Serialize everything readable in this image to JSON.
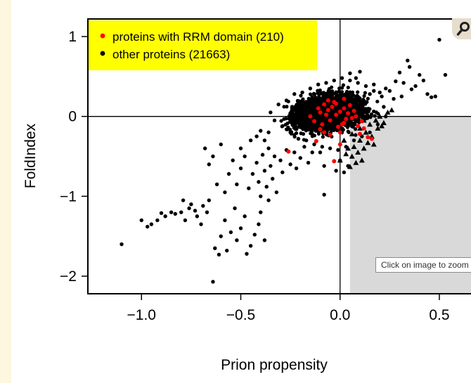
{
  "chart_data": {
    "type": "scatter",
    "xlabel": "Prion propensity",
    "ylabel": "FoldIndex",
    "xlim": [
      -1.27,
      0.67
    ],
    "ylim": [
      -2.22,
      1.22
    ],
    "xticks": [
      -1.0,
      -0.5,
      0.0,
      0.5
    ],
    "xtick_labels": [
      "−1.0",
      "−0.5",
      "0.0",
      "0.5"
    ],
    "yticks": [
      -2,
      -1,
      0,
      1
    ],
    "ytick_labels": [
      "−2",
      "−1",
      "0",
      "1"
    ],
    "reference_lines": {
      "x": 0,
      "y": 0
    },
    "shaded_region": {
      "x_from": 0.05,
      "x_to": 0.67,
      "y_from": -2.22,
      "y_to": 0,
      "color": "#d9d9d9"
    },
    "grid": false,
    "legend_position": "top-left",
    "legend_background": "#ffff00",
    "series": [
      {
        "name": "proteins with RRM domain (210)",
        "color": "#ff0000",
        "marker": "circle",
        "points": [
          [
            -0.26,
            -0.44
          ],
          [
            -0.12,
            -0.31
          ],
          [
            -0.05,
            -0.23
          ],
          [
            0.0,
            -0.35
          ],
          [
            -0.03,
            -0.56
          ],
          [
            0.02,
            -0.08
          ],
          [
            0.1,
            -0.22
          ],
          [
            0.14,
            -0.26
          ],
          [
            -0.08,
            0.15
          ],
          [
            -0.1,
            0.05
          ],
          [
            -0.06,
            0.08
          ],
          [
            -0.04,
            0.12
          ],
          [
            -0.02,
            0.02
          ],
          [
            0.0,
            0.06
          ],
          [
            0.02,
            0.1
          ],
          [
            0.04,
            0.04
          ],
          [
            0.06,
            -0.02
          ],
          [
            0.08,
            0.0
          ],
          [
            -0.15,
            0.0
          ],
          [
            -0.13,
            -0.06
          ],
          [
            -0.11,
            0.1
          ],
          [
            -0.09,
            -0.1
          ],
          [
            -0.07,
            0.02
          ],
          [
            -0.05,
            -0.05
          ],
          [
            -0.03,
            0.18
          ],
          [
            -0.01,
            -0.13
          ],
          [
            0.01,
            -0.1
          ],
          [
            0.03,
            -0.03
          ],
          [
            0.05,
            0.14
          ],
          [
            0.07,
            0.07
          ],
          [
            0.09,
            -0.12
          ],
          [
            0.11,
            -0.06
          ],
          [
            -0.06,
            0.2
          ],
          [
            -0.02,
            0.16
          ],
          [
            0.02,
            0.22
          ],
          [
            -0.1,
            -0.16
          ],
          [
            -0.08,
            -0.2
          ],
          [
            0.0,
            -0.2
          ],
          [
            0.12,
            -0.15
          ],
          [
            0.16,
            -0.28
          ]
        ]
      },
      {
        "name": "other proteins (21663)",
        "color": "#000000",
        "marker": "circle",
        "points": [
          [
            -1.1,
            -1.6
          ],
          [
            -1.0,
            -1.3
          ],
          [
            -0.97,
            -1.38
          ],
          [
            -0.95,
            -1.35
          ],
          [
            -0.92,
            -1.3
          ],
          [
            -0.9,
            -1.21
          ],
          [
            -0.88,
            -1.25
          ],
          [
            -0.85,
            -1.2
          ],
          [
            -0.83,
            -1.22
          ],
          [
            -0.8,
            -1.2
          ],
          [
            -0.79,
            -1.05
          ],
          [
            -0.78,
            -1.3
          ],
          [
            -0.76,
            -1.15
          ],
          [
            -0.75,
            -1.1
          ],
          [
            -0.73,
            -1.18
          ],
          [
            -0.72,
            -1.25
          ],
          [
            -0.7,
            -1.35
          ],
          [
            -0.69,
            -1.12
          ],
          [
            -0.67,
            -1.2
          ],
          [
            -0.66,
            -1.05
          ],
          [
            -0.64,
            -2.07
          ],
          [
            -0.63,
            -1.65
          ],
          [
            -0.61,
            -1.73
          ],
          [
            -0.6,
            -1.5
          ],
          [
            -0.58,
            -1.3
          ],
          [
            -0.57,
            -1.68
          ],
          [
            -0.55,
            -1.45
          ],
          [
            -0.53,
            -1.15
          ],
          [
            -0.52,
            -1.55
          ],
          [
            -0.5,
            -1.4
          ],
          [
            -0.48,
            -1.25
          ],
          [
            -0.47,
            -1.72
          ],
          [
            -0.45,
            -1.62
          ],
          [
            -0.43,
            -1.48
          ],
          [
            -0.41,
            -1.35
          ],
          [
            -0.4,
            -1.2
          ],
          [
            -0.38,
            -1.55
          ],
          [
            -0.36,
            -1.05
          ],
          [
            -0.68,
            -0.4
          ],
          [
            -0.66,
            -0.6
          ],
          [
            -0.64,
            -0.5
          ],
          [
            -0.62,
            -0.85
          ],
          [
            -0.6,
            -0.35
          ],
          [
            -0.58,
            -0.95
          ],
          [
            -0.56,
            -0.72
          ],
          [
            -0.54,
            -0.55
          ],
          [
            -0.52,
            -0.85
          ],
          [
            -0.5,
            -0.65
          ],
          [
            -0.5,
            -0.4
          ],
          [
            -0.48,
            -0.5
          ],
          [
            -0.46,
            -0.9
          ],
          [
            -0.45,
            -0.3
          ],
          [
            -0.44,
            -0.72
          ],
          [
            -0.42,
            -0.58
          ],
          [
            -0.41,
            -0.82
          ],
          [
            -0.4,
            -1.0
          ],
          [
            -0.39,
            -0.48
          ],
          [
            -0.38,
            -0.68
          ],
          [
            -0.37,
            -0.88
          ],
          [
            -0.36,
            -0.4
          ],
          [
            -0.35,
            -0.62
          ],
          [
            -0.34,
            -0.78
          ],
          [
            -0.33,
            -0.5
          ],
          [
            -0.32,
            -0.95
          ],
          [
            -0.3,
            -0.55
          ],
          [
            -0.29,
            -0.7
          ],
          [
            -0.27,
            -0.42
          ],
          [
            -0.25,
            -0.6
          ],
          [
            -0.23,
            -0.45
          ],
          [
            -0.22,
            -0.65
          ],
          [
            -0.2,
            -0.52
          ],
          [
            -0.18,
            -0.38
          ],
          [
            -0.16,
            -0.58
          ],
          [
            -0.14,
            -0.45
          ],
          [
            -0.1,
            -0.45
          ],
          [
            -0.08,
            -0.62
          ],
          [
            -0.08,
            -0.98
          ],
          [
            0.5,
            0.96
          ],
          [
            0.53,
            0.52
          ],
          [
            0.48,
            0.25
          ],
          [
            0.46,
            0.24
          ],
          [
            0.42,
            0.45
          ],
          [
            0.4,
            0.52
          ],
          [
            0.38,
            0.38
          ],
          [
            0.35,
            0.62
          ],
          [
            0.34,
            0.7
          ],
          [
            0.32,
            0.42
          ],
          [
            0.3,
            0.55
          ],
          [
            0.28,
            0.44
          ],
          [
            0.25,
            0.32
          ],
          [
            0.23,
            0.35
          ],
          [
            0.2,
            0.3
          ],
          [
            0.17,
            0.4
          ],
          [
            0.15,
            0.28
          ],
          [
            0.1,
            0.56
          ],
          [
            0.05,
            0.54
          ],
          [
            0.08,
            0.48
          ],
          [
            0.27,
            0.22
          ],
          [
            0.31,
            0.25
          ],
          [
            0.36,
            0.34
          ],
          [
            0.44,
            0.28
          ],
          [
            -0.35,
            0.05
          ],
          [
            -0.33,
            -0.05
          ],
          [
            -0.31,
            0.15
          ],
          [
            -0.29,
            -0.12
          ],
          [
            -0.27,
            0.2
          ],
          [
            -0.25,
            -0.2
          ],
          [
            -0.23,
            0.28
          ],
          [
            -0.21,
            -0.28
          ],
          [
            -0.19,
            0.3
          ],
          [
            -0.17,
            -0.3
          ],
          [
            -0.15,
            0.35
          ],
          [
            -0.13,
            -0.35
          ],
          [
            -0.11,
            0.4
          ],
          [
            -0.09,
            -0.38
          ],
          [
            -0.07,
            0.42
          ],
          [
            -0.05,
            -0.4
          ],
          [
            -0.03,
            0.45
          ],
          [
            -0.01,
            -0.42
          ],
          [
            0.01,
            0.48
          ],
          [
            0.03,
            -0.38
          ],
          [
            0.05,
            0.45
          ],
          [
            0.07,
            -0.3
          ],
          [
            0.09,
            0.42
          ],
          [
            0.11,
            -0.25
          ],
          [
            0.13,
            0.38
          ],
          [
            0.15,
            -0.2
          ],
          [
            0.17,
            0.32
          ],
          [
            0.19,
            -0.1
          ],
          [
            0.21,
            0.25
          ],
          [
            0.23,
            0.0
          ],
          [
            0.22,
            0.12
          ],
          [
            -0.4,
            -0.18
          ],
          [
            -0.42,
            -0.25
          ],
          [
            -0.38,
            -0.3
          ],
          [
            -0.36,
            -0.2
          ],
          [
            0.04,
            -0.62
          ],
          [
            0.02,
            -0.7
          ],
          [
            0.0,
            -0.55
          ],
          [
            -0.02,
            -0.68
          ]
        ]
      },
      {
        "name": "",
        "color": "#000000",
        "marker": "triangle",
        "points": [
          [
            0.0,
            -0.55
          ],
          [
            0.03,
            -0.47
          ],
          [
            0.05,
            -0.63
          ],
          [
            0.06,
            -0.5
          ],
          [
            0.07,
            -0.38
          ],
          [
            0.09,
            -0.45
          ],
          [
            0.1,
            -0.3
          ],
          [
            0.11,
            -0.55
          ],
          [
            0.12,
            -0.4
          ],
          [
            0.13,
            -0.2
          ],
          [
            0.14,
            -0.33
          ],
          [
            0.15,
            -0.1
          ],
          [
            0.16,
            -0.25
          ],
          [
            0.18,
            -0.05
          ],
          [
            0.19,
            -0.15
          ],
          [
            0.2,
            0.0
          ],
          [
            0.22,
            -0.08
          ],
          [
            0.24,
            0.05
          ],
          [
            0.26,
            0.08
          ],
          [
            0.21,
            -0.12
          ],
          [
            0.17,
            -0.35
          ],
          [
            0.08,
            -0.58
          ],
          [
            0.04,
            -0.4
          ],
          [
            0.12,
            -0.05
          ],
          [
            0.1,
            -0.15
          ],
          [
            0.14,
            0.02
          ],
          [
            0.06,
            -0.22
          ],
          [
            0.02,
            -0.3
          ]
        ]
      }
    ],
    "dense_cloud": {
      "x_center": -0.06,
      "y_center": 0.05,
      "x_spread": 0.1,
      "y_spread": 0.13,
      "count": 2600
    }
  },
  "legend": {
    "rrm_label": "proteins with RRM domain (210)",
    "other_label": "other proteins (21663)"
  },
  "tooltip": {
    "text": "Click on image to zoom"
  },
  "toolbar": {
    "zoom_icon": "magnifier-icon"
  }
}
